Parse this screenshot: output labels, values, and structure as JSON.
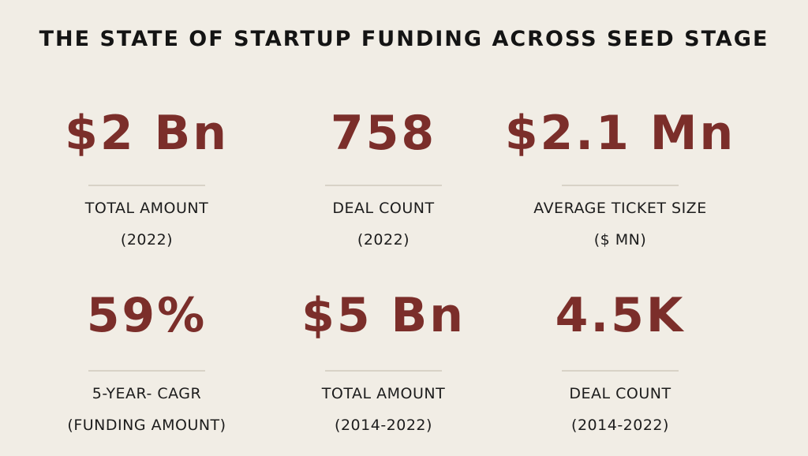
{
  "title": "THE STATE OF STARTUP FUNDING ACROSS SEED STAGE",
  "colors": {
    "background": "#f1ede5",
    "accent": "#7b2e2a",
    "text": "#141414",
    "divider": "#d8d2c7"
  },
  "stats": [
    {
      "value": "$2 Bn",
      "label_line1": "TOTAL AMOUNT",
      "label_line2": "(2022)"
    },
    {
      "value": "758",
      "label_line1": "DEAL COUNT",
      "label_line2": "(2022)"
    },
    {
      "value": "$2.1 Mn",
      "label_line1": "AVERAGE TICKET SIZE",
      "label_line2": "($ MN)"
    },
    {
      "value": "59%",
      "label_line1": "5-YEAR- CAGR",
      "label_line2": "(FUNDING AMOUNT)"
    },
    {
      "value": "$5 Bn",
      "label_line1": "TOTAL AMOUNT",
      "label_line2": "(2014-2022)"
    },
    {
      "value": "4.5K",
      "label_line1": "DEAL COUNT",
      "label_line2": "(2014-2022)"
    }
  ]
}
